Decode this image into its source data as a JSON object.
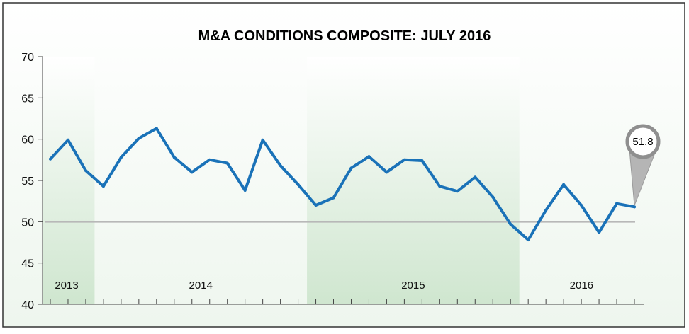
{
  "chart_data": {
    "type": "line",
    "title": "M&A CONDITIONS COMPOSITE: JULY 2016",
    "xlabel": "",
    "ylabel": "",
    "ylim": [
      40,
      70
    ],
    "yticks": [
      40,
      45,
      50,
      55,
      60,
      65,
      70
    ],
    "reference_line": 50,
    "colors": {
      "line": "#1a72b8",
      "reference": "#b8b8b8",
      "band_fill": "#d8ecd8",
      "callout_ring": "#8f8f8f"
    },
    "year_bands": [
      {
        "label": "2013",
        "start": 0,
        "end": 2,
        "shaded": true
      },
      {
        "label": "2014",
        "start": 3,
        "end": 14,
        "shaded": false
      },
      {
        "label": "2015",
        "start": 15,
        "end": 26,
        "shaded": true
      },
      {
        "label": "2016",
        "start": 27,
        "end": 33,
        "shaded": false
      }
    ],
    "series": [
      {
        "name": "M&A Conditions Composite",
        "values": [
          57.6,
          59.9,
          56.2,
          54.3,
          57.8,
          60.1,
          61.3,
          57.8,
          56.0,
          57.5,
          57.1,
          53.8,
          59.9,
          56.8,
          54.5,
          52.0,
          52.9,
          56.5,
          57.9,
          56.0,
          57.5,
          57.4,
          54.3,
          53.7,
          55.4,
          53.0,
          49.7,
          47.8,
          51.4,
          54.5,
          52.0,
          48.7,
          52.2,
          51.8
        ]
      }
    ],
    "annotation": {
      "label": "51.8",
      "index": 33
    }
  }
}
